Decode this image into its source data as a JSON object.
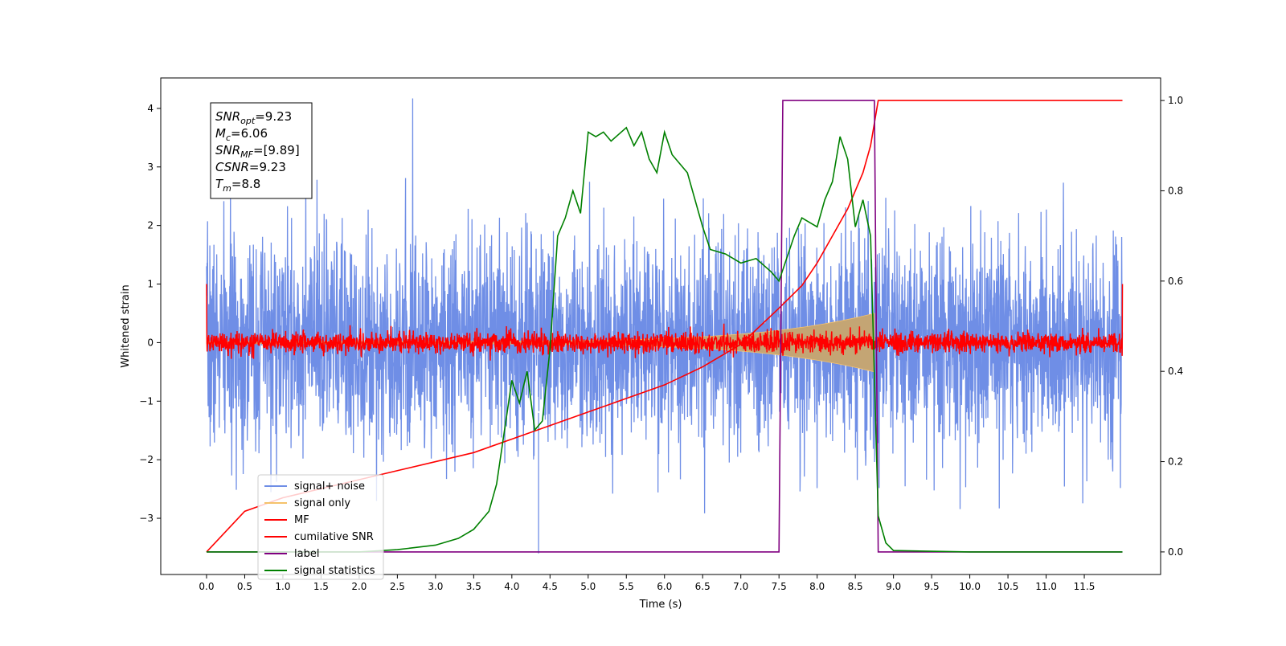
{
  "chart_data": {
    "type": "line",
    "title": "",
    "xlabel": "Time (s)",
    "ylabel": "Whitened strain",
    "xlim": [
      -0.6,
      12.5
    ],
    "ylim": [
      -3.96,
      4.52
    ],
    "y2lim": [
      -0.05,
      1.05
    ],
    "x_ticks": [
      0.0,
      0.5,
      1.0,
      1.5,
      2.0,
      2.5,
      3.0,
      3.5,
      4.0,
      4.5,
      5.0,
      5.5,
      6.0,
      6.5,
      7.0,
      7.5,
      8.0,
      8.5,
      9.0,
      9.5,
      10.0,
      10.5,
      11.0,
      11.5
    ],
    "x_tick_labels": [
      "0.0",
      "0.5",
      "1.0",
      "1.5",
      "2.0",
      "2.5",
      "3.0",
      "3.5",
      "4.0",
      "4.5",
      "5.0",
      "5.5",
      "6.0",
      "6.5",
      "7.0",
      "7.5",
      "8.0",
      "8.5",
      "9.0",
      "9.5",
      "10.0",
      "10.5",
      "11.0",
      "11.5"
    ],
    "y_ticks": [
      -3,
      -2,
      -1,
      0,
      1,
      2,
      3,
      4
    ],
    "y_tick_labels": [
      "−3",
      "−2",
      "−1",
      "0",
      "1",
      "2",
      "3",
      "4"
    ],
    "y2_ticks": [
      0.0,
      0.2,
      0.4,
      0.6,
      0.8,
      1.0
    ],
    "y2_tick_labels": [
      "0.0",
      "0.2",
      "0.4",
      "0.6",
      "0.8",
      "1.0"
    ],
    "grid": false,
    "legend_position": "lower-left",
    "colors": {
      "signal_noise": "#6f8ee6",
      "signal_only": "#f5c26b",
      "mf": "#ff0000",
      "cumulative": "#ff0000",
      "label": "#800080",
      "statistics": "#008000",
      "envelope_fill": "#c4a574"
    },
    "series": [
      {
        "name": "signal+ noise",
        "kind": "noise",
        "x_range": [
          0.0,
          12.0
        ],
        "typical_abs_max": 2.5,
        "peak": 4.17
      },
      {
        "name": "signal only",
        "kind": "chirp",
        "x_range": [
          0.0,
          8.75
        ],
        "envelope_start": 0.02,
        "envelope_end": 0.5
      },
      {
        "name": "MF",
        "kind": "noise",
        "x_range": [
          0.0,
          12.0
        ],
        "amplitude": 0.15,
        "endpoints": 1.0
      },
      {
        "name": "cumilative SNR",
        "axis": "right",
        "x": [
          0.0,
          0.5,
          1.0,
          1.5,
          2.0,
          2.5,
          3.0,
          3.5,
          4.0,
          4.5,
          5.0,
          5.5,
          6.0,
          6.5,
          7.0,
          7.5,
          7.8,
          8.0,
          8.2,
          8.4,
          8.6,
          8.7,
          8.8,
          9.0,
          10.0,
          11.0,
          12.0
        ],
        "y": [
          0.0,
          0.09,
          0.12,
          0.14,
          0.16,
          0.18,
          0.2,
          0.22,
          0.25,
          0.28,
          0.31,
          0.34,
          0.37,
          0.41,
          0.46,
          0.54,
          0.59,
          0.64,
          0.7,
          0.76,
          0.84,
          0.9,
          1.0,
          1.0,
          1.0,
          1.0,
          1.0
        ]
      },
      {
        "name": "label",
        "axis": "right",
        "x": [
          0.0,
          7.5,
          7.55,
          8.75,
          8.8,
          12.0
        ],
        "y": [
          0,
          0,
          1,
          1,
          0,
          0
        ]
      },
      {
        "name": "signal statistics",
        "axis": "right",
        "x": [
          0.0,
          1.0,
          2.0,
          2.5,
          3.0,
          3.3,
          3.5,
          3.6,
          3.7,
          3.8,
          4.0,
          4.1,
          4.2,
          4.3,
          4.4,
          4.5,
          4.6,
          4.7,
          4.8,
          4.9,
          5.0,
          5.1,
          5.2,
          5.3,
          5.5,
          5.6,
          5.7,
          5.8,
          5.9,
          6.0,
          6.1,
          6.3,
          6.5,
          6.6,
          6.8,
          7.0,
          7.2,
          7.4,
          7.5,
          7.7,
          7.8,
          7.9,
          8.0,
          8.1,
          8.2,
          8.3,
          8.4,
          8.5,
          8.6,
          8.7,
          8.8,
          8.9,
          9.0,
          10.0,
          12.0
        ],
        "y": [
          0.0,
          0.0,
          0.0,
          0.005,
          0.015,
          0.03,
          0.05,
          0.07,
          0.09,
          0.15,
          0.38,
          0.33,
          0.4,
          0.27,
          0.29,
          0.45,
          0.7,
          0.74,
          0.8,
          0.75,
          0.93,
          0.92,
          0.93,
          0.91,
          0.94,
          0.9,
          0.93,
          0.87,
          0.84,
          0.93,
          0.88,
          0.84,
          0.72,
          0.67,
          0.66,
          0.64,
          0.65,
          0.62,
          0.6,
          0.7,
          0.74,
          0.73,
          0.72,
          0.78,
          0.82,
          0.92,
          0.87,
          0.72,
          0.78,
          0.7,
          0.08,
          0.02,
          0.003,
          0.0,
          0.0
        ]
      }
    ],
    "annotation": {
      "lines": [
        {
          "base": "SNR",
          "sub": "opt",
          "value": "=9.23"
        },
        {
          "base": "M",
          "sub": "c",
          "value": "=6.06"
        },
        {
          "base": "SNR",
          "sub": "MF",
          "value": "=[9.89]"
        },
        {
          "base": "CSNR",
          "sub": "",
          "value": "=9.23"
        },
        {
          "base": "T",
          "sub": "m",
          "value": "=8.8"
        }
      ]
    }
  }
}
